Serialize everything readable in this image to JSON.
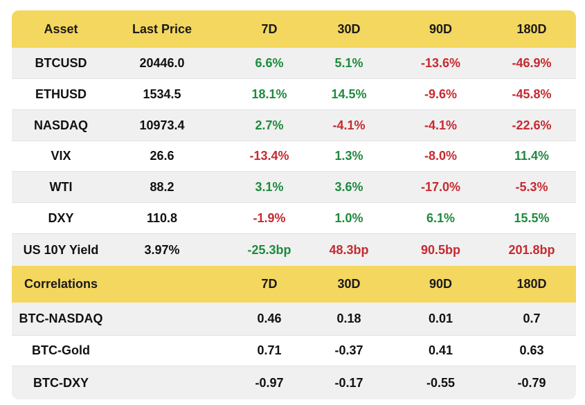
{
  "market": {
    "headers": [
      "Asset",
      "Last Price",
      "7D",
      "30D",
      "90D",
      "180D"
    ],
    "rows": [
      {
        "asset": "BTCUSD",
        "price": "20446.0",
        "d7": "6.6%",
        "d30": "5.1%",
        "d90": "-13.6%",
        "d180": "-46.9%"
      },
      {
        "asset": "ETHUSD",
        "price": "1534.5",
        "d7": "18.1%",
        "d30": "14.5%",
        "d90": "-9.6%",
        "d180": "-45.8%"
      },
      {
        "asset": "NASDAQ",
        "price": "10973.4",
        "d7": "2.7%",
        "d30": "-4.1%",
        "d90": "-4.1%",
        "d180": "-22.6%"
      },
      {
        "asset": "VIX",
        "price": "26.6",
        "d7": "-13.4%",
        "d30": "1.3%",
        "d90": "-8.0%",
        "d180": "11.4%"
      },
      {
        "asset": "WTI",
        "price": "88.2",
        "d7": "3.1%",
        "d30": "3.6%",
        "d90": "-17.0%",
        "d180": "-5.3%"
      },
      {
        "asset": "DXY",
        "price": "110.8",
        "d7": "-1.9%",
        "d30": "1.0%",
        "d90": "6.1%",
        "d180": "15.5%"
      },
      {
        "asset": "US 10Y Yield",
        "price": "3.97%",
        "d7": "-25.3bp",
        "d30": "48.3bp",
        "d90": "90.5bp",
        "d180": "201.8bp"
      }
    ]
  },
  "correlations": {
    "headers": [
      "Correlations",
      "7D",
      "30D",
      "90D",
      "180D"
    ],
    "rows": [
      {
        "pair": "BTC-NASDAQ",
        "d7": "0.46",
        "d30": "0.18",
        "d90": "0.01",
        "d180": "0.7"
      },
      {
        "pair": "BTC-Gold",
        "d7": "0.71",
        "d30": "-0.37",
        "d90": "0.41",
        "d180": "0.63"
      },
      {
        "pair": "BTC-DXY",
        "d7": "-0.97",
        "d30": "-0.17",
        "d90": "-0.55",
        "d180": "-0.79"
      }
    ]
  },
  "colors": {
    "header_bg": "#f4d75e",
    "positive": "#1f8a3e",
    "negative": "#c52a30",
    "row_alt": "#f0f0f0"
  }
}
